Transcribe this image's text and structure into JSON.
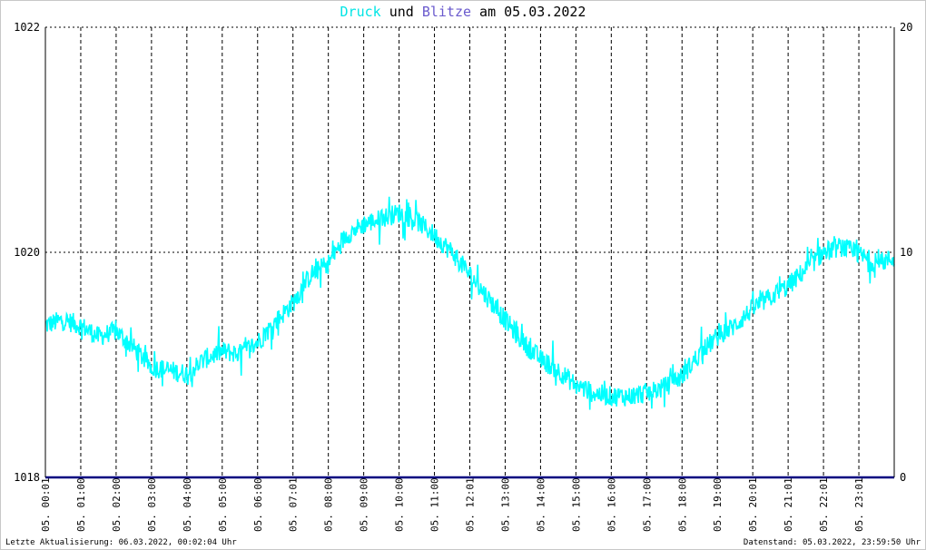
{
  "title": {
    "part1": "Druck",
    "part2": " und ",
    "part3": "Blitze",
    "part4": " am 05.03.2022"
  },
  "footer": {
    "left": "Letzte Aktualisierung: 06.03.2022, 00:02:04 Uhr",
    "right": "Datenstand: 05.03.2022, 23:59:50 Uhr"
  },
  "colors": {
    "pressure": "#00ffff",
    "lightning": "#000080",
    "title_pressure": "#00e5e5",
    "title_lightning": "#6a5acd",
    "grid": "#000000"
  },
  "chart_data": {
    "type": "line",
    "title": "Druck und Blitze am 05.03.2022",
    "grid": true,
    "y_left": {
      "ylim": [
        1018,
        1022
      ],
      "ticks": [
        "1018",
        "1020",
        "1022"
      ]
    },
    "y_right": {
      "ylim": [
        0,
        20
      ],
      "ticks": [
        "0",
        "10",
        "20"
      ]
    },
    "x_labels": [
      "05. 00:01",
      "05. 01:00",
      "05. 02:00",
      "05. 03:00",
      "05. 04:00",
      "05. 05:00",
      "05. 06:00",
      "05. 07:01",
      "05. 08:00",
      "05. 09:00",
      "05. 10:00",
      "05. 11:00",
      "05. 12:01",
      "05. 13:00",
      "05. 14:00",
      "05. 15:00",
      "05. 16:00",
      "05. 17:00",
      "05. 18:00",
      "05. 19:00",
      "05. 20:01",
      "05. 21:01",
      "05. 22:01",
      "05. 23:01"
    ],
    "x_hours": [
      0,
      1,
      2,
      3,
      4,
      5,
      6,
      7,
      8,
      9,
      10,
      11,
      12,
      13,
      14,
      15,
      16,
      17,
      18,
      19,
      20,
      21,
      22,
      23
    ],
    "series": [
      {
        "axis": "left",
        "x_hours": [
          0,
          0.5,
          1,
          1.5,
          2,
          2.5,
          3,
          3.5,
          4,
          4.5,
          5,
          5.5,
          6,
          6.5,
          7,
          7.5,
          8,
          8.5,
          9,
          9.5,
          10,
          10.5,
          11,
          11.5,
          12,
          12.5,
          13,
          13.5,
          14,
          14.5,
          15,
          15.5,
          16,
          16.5,
          17,
          17.5,
          18,
          18.5,
          19,
          19.5,
          20,
          20.5,
          21,
          21.5,
          22,
          22.5,
          23,
          23.5,
          24
        ],
        "values": [
          1019.35,
          1019.4,
          1019.35,
          1019.25,
          1019.3,
          1019.15,
          1018.98,
          1018.95,
          1018.92,
          1019.05,
          1019.12,
          1019.1,
          1019.2,
          1019.38,
          1019.55,
          1019.8,
          1019.9,
          1020.15,
          1020.25,
          1020.3,
          1020.35,
          1020.28,
          1020.15,
          1020.0,
          1019.8,
          1019.6,
          1019.4,
          1019.2,
          1019.05,
          1018.95,
          1018.82,
          1018.75,
          1018.72,
          1018.72,
          1018.75,
          1018.8,
          1018.9,
          1019.1,
          1019.25,
          1019.35,
          1019.5,
          1019.6,
          1019.7,
          1019.85,
          1020.0,
          1020.05,
          1019.98,
          1019.9,
          1019.95
        ]
      },
      {
        "axis": "right",
        "x_hours": [
          0,
          24
        ],
        "values": [
          0,
          0
        ]
      }
    ]
  }
}
